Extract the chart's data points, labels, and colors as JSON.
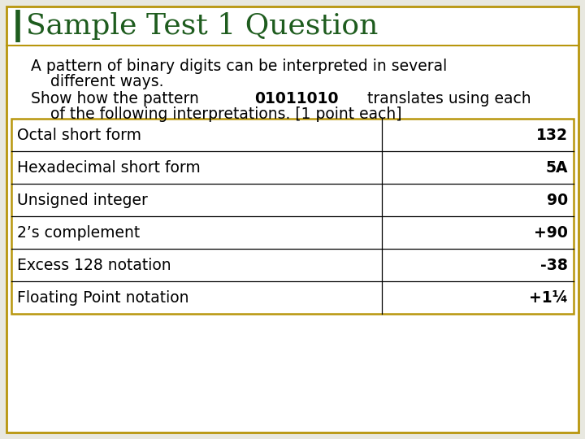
{
  "title": "Sample Test 1 Question",
  "title_color": "#1e5c1e",
  "title_fontsize": 26,
  "background_color": "#ffffff",
  "outer_bg_color": "#e8e8e0",
  "border_color": "#b8960c",
  "accent_line_color": "#1e5c1e",
  "paragraph1_line1": "A pattern of binary digits can be interpreted in several",
  "paragraph1_line2": "    different ways.",
  "paragraph2_pre": "Show how the pattern ",
  "paragraph2_bold": "01011010",
  "paragraph2_post": " translates using each",
  "paragraph2_line2": "    of the following interpretations. [1 point each]",
  "table_rows": [
    [
      "Octal short form",
      "132"
    ],
    [
      "Hexadecimal short form",
      "5A"
    ],
    [
      "Unsigned integer",
      "90"
    ],
    [
      "2’s complement",
      "+90"
    ],
    [
      "Excess 128 notation",
      "-38"
    ],
    [
      "Floating Point notation",
      "+1¼"
    ]
  ],
  "table_border_color": "#b8960c",
  "table_line_color": "#000000",
  "text_color": "#000000",
  "font_size_body": 13.5,
  "font_size_table": 13.5,
  "font_size_title": 26
}
